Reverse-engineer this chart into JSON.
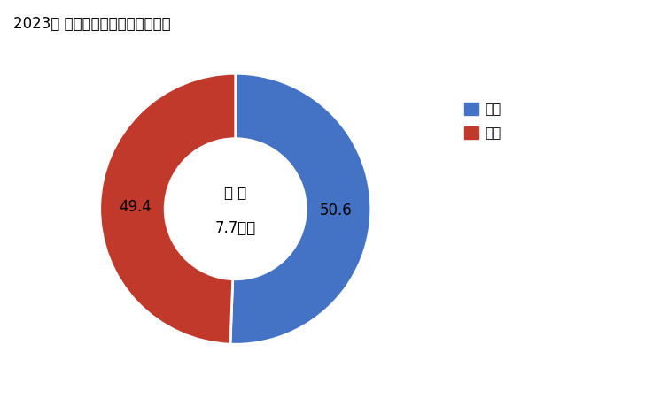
{
  "title": "2023年 輸出相手国のシェア（％）",
  "slices": [
    50.6,
    49.4
  ],
  "labels": [
    "中国",
    "タイ"
  ],
  "colors": [
    "#4472C4",
    "#C0392B"
  ],
  "center_label_line1": "総 額",
  "center_label_line2": "7.7億円",
  "slice_labels": [
    "50.6",
    "49.4"
  ],
  "background_color": "#FFFFFF",
  "label_color": "#000000",
  "slice_label_color": "#000000"
}
